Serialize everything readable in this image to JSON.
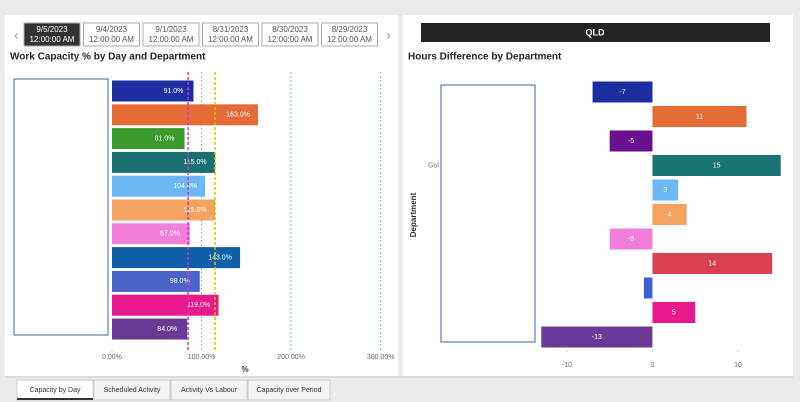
{
  "date_tabs": [
    {
      "date": "9/5/2023",
      "time": "12:00:00 AM"
    },
    {
      "date": "9/4/2023",
      "time": "12:00:00 AM"
    },
    {
      "date": "9/1/2023",
      "time": "12:00:00 AM"
    },
    {
      "date": "8/31/2023",
      "time": "12:00:00 AM"
    },
    {
      "date": "8/30/2023",
      "time": "12:00:00 AM"
    },
    {
      "date": "8/29/2023",
      "time": "12:00:00 AM"
    }
  ],
  "region": "QLD",
  "page_tabs": [
    "Capacity by Day",
    "Scheduled Activity",
    "Activity Vs Labour",
    "Capacity over Period"
  ],
  "chart_data": [
    {
      "type": "hbar",
      "title": "Work Capacity % by Day and Department",
      "x_label": "%",
      "categories": [
        null,
        null,
        null,
        null,
        null,
        null,
        null,
        null,
        null,
        null,
        null
      ],
      "values": [
        91,
        163,
        81,
        115,
        104,
        115,
        87,
        143,
        98,
        119,
        84
      ],
      "value_labels": [
        "91.0%",
        "163.0%",
        "81.0%",
        "115.0%",
        "104.0%",
        "115.0%",
        "87.0%",
        "143.0%",
        "98.0%",
        "119.0%",
        "84.0%"
      ],
      "colors": [
        "#1c2ea0",
        "#e66c37",
        "#3b9a2e",
        "#1a7070",
        "#6cb8f5",
        "#f4a25f",
        "#ef7fd9",
        "#0e5fa8",
        "#4a64c9",
        "#e8198c",
        "#6b3a96"
      ],
      "xlim": [
        0,
        316
      ],
      "xticks": [
        {
          "value": 0,
          "label": "0.00%"
        },
        {
          "value": 100,
          "label": "100.00%"
        },
        {
          "value": 200,
          "label": "200.00%"
        },
        {
          "value": 300,
          "label": "300.00%"
        }
      ],
      "grid": true,
      "reference_lines": [
        {
          "value": 85,
          "color": "#c23fc0"
        },
        {
          "value": 115,
          "color": "#e0c000"
        }
      ]
    },
    {
      "type": "hbar",
      "title": "Hours Difference by Department",
      "y_label": "Department",
      "categories": [
        null,
        null,
        null,
        "Gol",
        null,
        null,
        null,
        null,
        null,
        null,
        null
      ],
      "values": [
        -7,
        11,
        -5,
        15,
        3,
        4,
        -5,
        14,
        -1,
        5,
        -13
      ],
      "colors": [
        "#1c2ea0",
        "#e66c37",
        "#6a0f8e",
        "#1a7272",
        "#6cb8f5",
        "#f4a25f",
        "#ef7fd9",
        "#d9414e",
        "#3c5fd6",
        "#e8198c",
        "#6b3a96"
      ],
      "xlim": [
        -13.5,
        15.5
      ],
      "xticks": [
        -10,
        0,
        10
      ],
      "grid": false
    }
  ]
}
